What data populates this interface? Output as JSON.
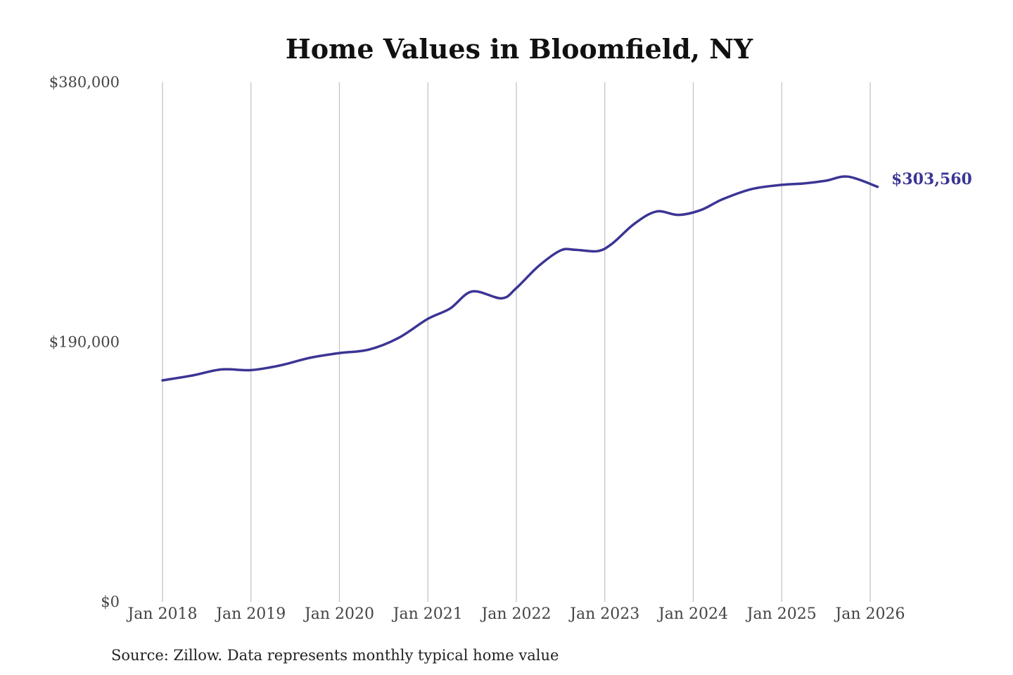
{
  "chart_data": {
    "type": "line",
    "title": "Home Values in Bloomfield, NY",
    "source": "Source: Zillow. Data represents monthly typical home value",
    "xlabel": "",
    "ylabel": "",
    "ylim": [
      0,
      380000
    ],
    "y_ticks": [
      {
        "value": 0,
        "label": "$0"
      },
      {
        "value": 190000,
        "label": "$190,000"
      },
      {
        "value": 380000,
        "label": "$380,000"
      }
    ],
    "x_ticks": [
      {
        "value": "2018-01",
        "label": "Jan 2018"
      },
      {
        "value": "2019-01",
        "label": "Jan 2019"
      },
      {
        "value": "2020-01",
        "label": "Jan 2020"
      },
      {
        "value": "2021-01",
        "label": "Jan 2021"
      },
      {
        "value": "2022-01",
        "label": "Jan 2022"
      },
      {
        "value": "2023-01",
        "label": "Jan 2023"
      },
      {
        "value": "2024-01",
        "label": "Jan 2024"
      },
      {
        "value": "2025-01",
        "label": "Jan 2025"
      },
      {
        "value": "2026-01",
        "label": "Jan 2026"
      }
    ],
    "grid": {
      "vertical": true,
      "horizontal": false
    },
    "legend": "none",
    "end_label": "$303,560",
    "series": [
      {
        "color": "#3b3594",
        "x": [
          "2018-01",
          "2018-05",
          "2018-09",
          "2019-01",
          "2019-05",
          "2019-09",
          "2020-01",
          "2020-05",
          "2020-09",
          "2021-01",
          "2021-04",
          "2021-07",
          "2021-11",
          "2022-01",
          "2022-04",
          "2022-07",
          "2022-09",
          "2022-12",
          "2023-02",
          "2023-05",
          "2023-08",
          "2023-11",
          "2024-02",
          "2024-05",
          "2024-09",
          "2025-01",
          "2025-04",
          "2025-07",
          "2025-10",
          "2026-02"
        ],
        "values": [
          162000,
          165500,
          170000,
          169500,
          173000,
          178500,
          182000,
          184500,
          193000,
          207000,
          214500,
          227000,
          222000,
          229500,
          245500,
          257000,
          257500,
          256500,
          262000,
          276500,
          285500,
          283000,
          286500,
          294500,
          302000,
          305000,
          306000,
          308000,
          311000,
          303560
        ]
      }
    ]
  }
}
